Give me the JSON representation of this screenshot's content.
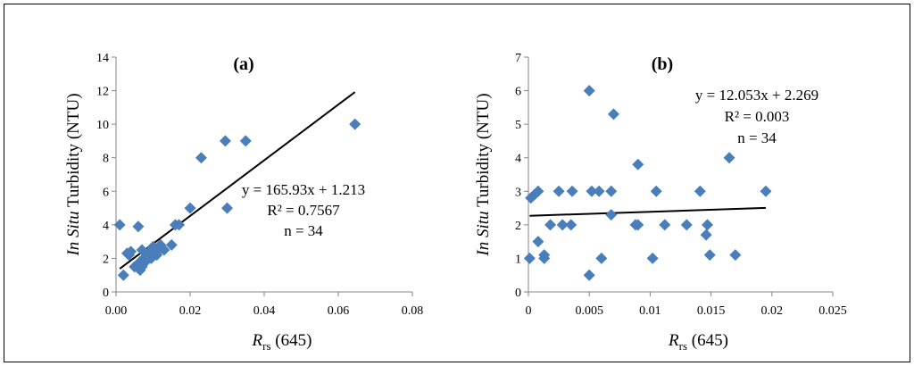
{
  "chart_data": [
    {
      "type": "scatter",
      "title": "(a)",
      "xlabel": {
        "main": "R",
        "sub": "rs",
        "suffix": " (645)"
      },
      "ylabel": {
        "italic": "In Situ",
        "rest": " Turbidity (NTU)"
      },
      "xlim": [
        0,
        0.08
      ],
      "ylim": [
        0,
        14
      ],
      "xticks": [
        "0.00",
        "0.02",
        "0.04",
        "0.06",
        "0.08"
      ],
      "yticks": [
        "0",
        "2",
        "4",
        "6",
        "8",
        "10",
        "12",
        "14"
      ],
      "marker_color": "#4a7ebb",
      "points": [
        [
          0.001,
          4.0
        ],
        [
          0.002,
          1.0
        ],
        [
          0.003,
          2.3
        ],
        [
          0.0035,
          2.2
        ],
        [
          0.005,
          1.5
        ],
        [
          0.006,
          1.6
        ],
        [
          0.006,
          3.9
        ],
        [
          0.0065,
          1.3
        ],
        [
          0.007,
          2.5
        ],
        [
          0.0075,
          2.0
        ],
        [
          0.008,
          1.8
        ],
        [
          0.0085,
          2.2
        ],
        [
          0.009,
          2.4
        ],
        [
          0.0095,
          2.0
        ],
        [
          0.01,
          2.7
        ],
        [
          0.0105,
          2.6
        ],
        [
          0.011,
          2.2
        ],
        [
          0.0115,
          2.5
        ],
        [
          0.012,
          2.8
        ],
        [
          0.013,
          2.5
        ],
        [
          0.015,
          2.8
        ],
        [
          0.016,
          4.0
        ],
        [
          0.017,
          4.0
        ],
        [
          0.02,
          5.0
        ],
        [
          0.023,
          8.0
        ],
        [
          0.0295,
          9.0
        ],
        [
          0.03,
          5.0
        ],
        [
          0.035,
          9.0
        ],
        [
          0.0645,
          10.0
        ],
        [
          0.0065,
          1.8
        ],
        [
          0.007,
          1.5
        ],
        [
          0.0125,
          2.6
        ],
        [
          0.004,
          2.4
        ],
        [
          0.009,
          2.1
        ]
      ],
      "trendline": {
        "slope": 165.93,
        "intercept": 1.213,
        "x_range": [
          0.001,
          0.0645
        ]
      },
      "annotations": [
        "y = 165.93x + 1.213",
        "R² = 0.7567",
        "n = 34"
      ]
    },
    {
      "type": "scatter",
      "title": "(b)",
      "xlabel": {
        "main": "R",
        "sub": "rs",
        "suffix": " (645)"
      },
      "ylabel": {
        "italic": "In Situ",
        "rest": " Turbidity (NTU)"
      },
      "xlim": [
        0,
        0.025
      ],
      "ylim": [
        0,
        7
      ],
      "xticks": [
        "0",
        "0.005",
        "0.01",
        "0.015",
        "0.02",
        "0.025"
      ],
      "yticks": [
        "0",
        "1",
        "2",
        "3",
        "4",
        "5",
        "6",
        "7"
      ],
      "marker_color": "#4a7ebb",
      "points": [
        [
          0.0001,
          1.0
        ],
        [
          0.0002,
          2.8
        ],
        [
          0.0005,
          2.9
        ],
        [
          0.0008,
          3.0
        ],
        [
          0.0008,
          1.5
        ],
        [
          0.0013,
          1.1
        ],
        [
          0.0013,
          1.0
        ],
        [
          0.0018,
          2.0
        ],
        [
          0.0025,
          3.0
        ],
        [
          0.0028,
          2.0
        ],
        [
          0.0035,
          2.0
        ],
        [
          0.0036,
          3.0
        ],
        [
          0.005,
          6.0
        ],
        [
          0.005,
          0.5
        ],
        [
          0.0052,
          3.0
        ],
        [
          0.0058,
          3.0
        ],
        [
          0.006,
          1.0
        ],
        [
          0.0068,
          3.0
        ],
        [
          0.0068,
          2.3
        ],
        [
          0.007,
          5.3
        ],
        [
          0.0088,
          2.0
        ],
        [
          0.009,
          3.8
        ],
        [
          0.009,
          2.0
        ],
        [
          0.0102,
          1.0
        ],
        [
          0.0105,
          3.0
        ],
        [
          0.0112,
          2.0
        ],
        [
          0.013,
          2.0
        ],
        [
          0.0141,
          3.0
        ],
        [
          0.0146,
          1.7
        ],
        [
          0.0147,
          2.0
        ],
        [
          0.0149,
          1.1
        ],
        [
          0.0165,
          4.0
        ],
        [
          0.017,
          1.1
        ],
        [
          0.0195,
          3.0
        ]
      ],
      "trendline": {
        "slope": 12.053,
        "intercept": 2.269,
        "x_range": [
          0.0001,
          0.0195
        ]
      },
      "annotations": [
        "y = 12.053x + 2.269",
        "R² = 0.003",
        "n = 34"
      ]
    }
  ]
}
